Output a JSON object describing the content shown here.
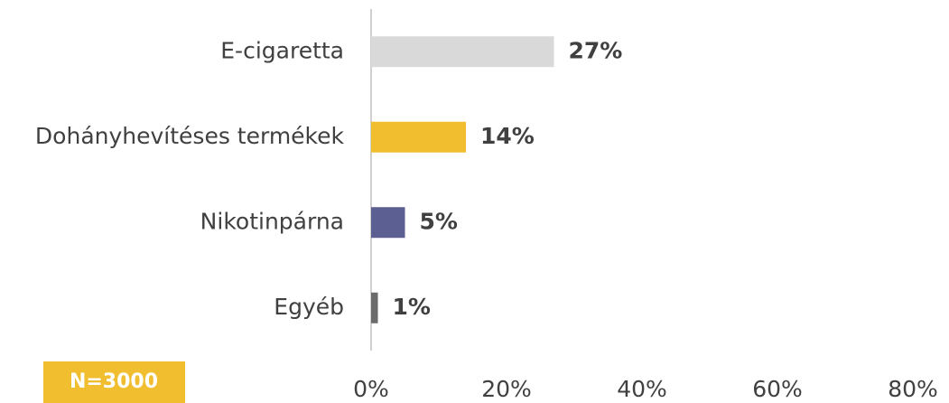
{
  "chart_data": {
    "type": "bar",
    "orientation": "horizontal",
    "categories": [
      "E-cigaretta",
      "Dohányhevítéses termékek",
      "Nikotinpárna",
      "Egyéb"
    ],
    "values": [
      27,
      14,
      5,
      1
    ],
    "value_labels": [
      "27%",
      "14%",
      "5%",
      "1%"
    ],
    "colors": [
      "#d9d9d9",
      "#f0be2f",
      "#5b5f91",
      "#6b6b6b"
    ],
    "xlim": [
      0,
      80
    ],
    "xticks": [
      {
        "value": 0,
        "label": "0%"
      },
      {
        "value": 20,
        "label": "20%"
      },
      {
        "value": 40,
        "label": "40%"
      },
      {
        "value": 60,
        "label": "60%"
      },
      {
        "value": 80,
        "label": "80%"
      }
    ],
    "grid": false,
    "note": "N=3000"
  }
}
